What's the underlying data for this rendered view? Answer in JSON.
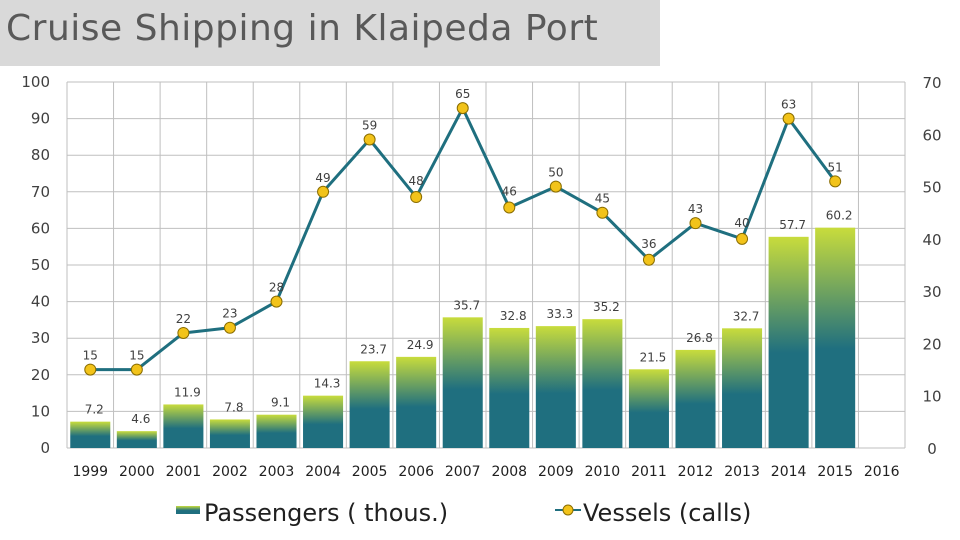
{
  "title": "Cruise Shipping in Klaipeda Port",
  "chart_data": {
    "type": "bar+line",
    "categories": [
      "1999",
      "2000",
      "2001",
      "2002",
      "2003",
      "2004",
      "2005",
      "2006",
      "2007",
      "2008",
      "2009",
      "2010",
      "2011",
      "2012",
      "2013",
      "2014",
      "2015",
      "2016"
    ],
    "series": [
      {
        "name": "Passengers ( thous.)",
        "type": "bar",
        "axis": "left",
        "values": [
          7.2,
          4.6,
          11.9,
          7.8,
          9.1,
          14.3,
          23.7,
          24.9,
          35.7,
          32.8,
          33.3,
          35.2,
          21.5,
          26.8,
          32.7,
          57.7,
          60.2,
          null
        ],
        "color_top": "#c8dc3c",
        "color_bottom": "#1f6f7f"
      },
      {
        "name": "Vessels (calls)",
        "type": "line",
        "axis": "right",
        "values": [
          15,
          15,
          22,
          23,
          28,
          49,
          59,
          48,
          65,
          46,
          50,
          45,
          36,
          43,
          40,
          63,
          51,
          null
        ],
        "line_color": "#1f6f7f",
        "marker_color": "#f2c31a"
      }
    ],
    "left_axis": {
      "range": [
        0,
        100
      ],
      "ticks": [
        "0",
        "10",
        "20",
        "30",
        "40",
        "50",
        "60",
        "70",
        "80",
        "90",
        "100"
      ]
    },
    "right_axis": {
      "range": [
        0,
        70
      ],
      "ticks": [
        "0",
        "10",
        "20",
        "30",
        "40",
        "50",
        "60",
        "70"
      ]
    },
    "grid": true,
    "legend_placement": "bottom"
  }
}
